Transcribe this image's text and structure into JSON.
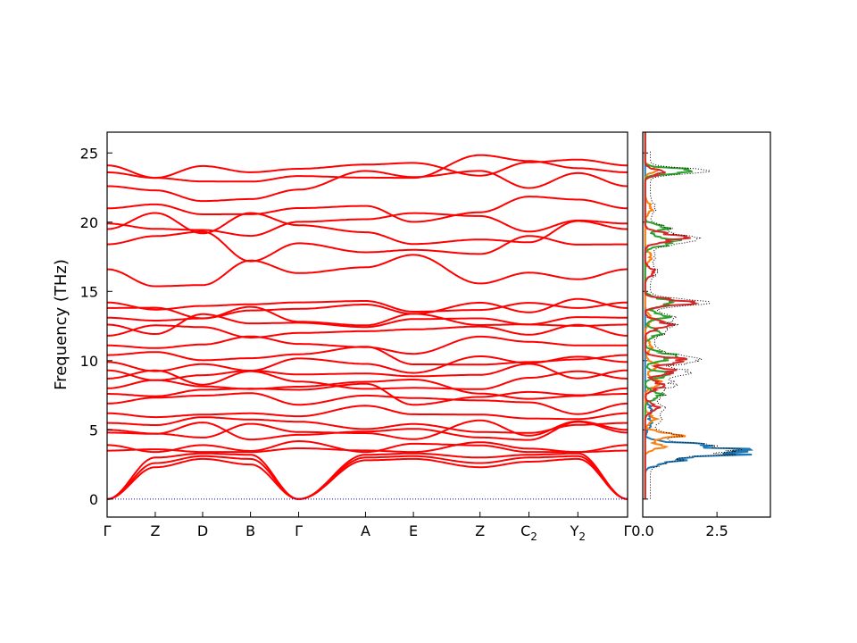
{
  "chart_data": [
    {
      "type": "line",
      "panel": "phonon band structure",
      "ylabel": "Frequency (THz)",
      "ylim": [
        -1.3,
        26.5
      ],
      "yticks": [
        0,
        5,
        10,
        15,
        20,
        25
      ],
      "path": [
        {
          "label": "Γ",
          "sub": ""
        },
        {
          "label": "Z",
          "sub": ""
        },
        {
          "label": "D",
          "sub": ""
        },
        {
          "label": "B",
          "sub": ""
        },
        {
          "label": "Γ",
          "sub": ""
        },
        {
          "label": "A",
          "sub": ""
        },
        {
          "label": "E",
          "sub": ""
        },
        {
          "label": "Z",
          "sub": ""
        },
        {
          "label": "C",
          "sub": "2"
        },
        {
          "label": "Y",
          "sub": "2"
        },
        {
          "label": "Γ",
          "sub": ""
        }
      ],
      "zero_line": {
        "value": 0,
        "color": "#0000cc",
        "style": "dotted"
      },
      "band_color": "#ff0000",
      "bands_at_points": {
        "optical_levels": [
          3.5,
          3.9,
          4.8,
          5.0,
          5.5,
          6.2,
          6.9,
          7.6,
          8.0,
          8.7,
          9.3,
          9.9,
          10.4,
          11.1,
          11.8,
          12.6,
          13.1,
          13.8,
          14.2,
          16.6,
          18.4,
          19.5,
          19.9,
          21.0,
          22.6,
          23.6,
          24.1
        ],
        "acoustic_max": 3.3
      }
    },
    {
      "type": "line",
      "panel": "projected density of states",
      "xlim": [
        0,
        4.3
      ],
      "xticks": [
        0.0,
        2.5
      ],
      "ylim": [
        -1.3,
        26.5
      ],
      "series": [
        {
          "color": "#1f77b4"
        },
        {
          "color": "#ff7f0e"
        },
        {
          "color": "#2ca02c"
        },
        {
          "color": "#d62728"
        },
        {
          "color": "#000000",
          "style": "dotted"
        }
      ]
    }
  ]
}
